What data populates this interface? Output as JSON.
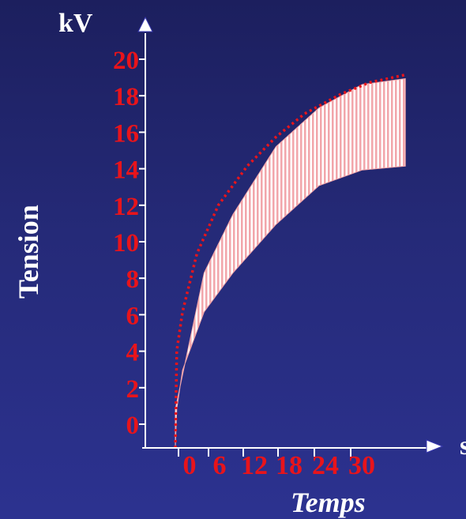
{
  "chart_data": {
    "type": "area",
    "ylabel": "Tension",
    "xlabel": "Temps",
    "y_unit": "kV",
    "x_unit": "s",
    "y_ticks": [
      "0",
      "2",
      "4",
      "6",
      "8",
      "10",
      "12",
      "14",
      "16",
      "18",
      "20"
    ],
    "x_ticks": [
      "0",
      "6",
      "12",
      "18",
      "24",
      "30"
    ],
    "ylim": [
      0,
      20
    ],
    "xlim": [
      0,
      30
    ],
    "series": [
      {
        "x": [
          0,
          0,
          4,
          8,
          14,
          20,
          26,
          32
        ],
        "values": [
          0,
          2,
          9,
          12,
          15.5,
          17.5,
          18.7,
          19
        ]
      },
      {
        "x": [
          0,
          0.2,
          1,
          4,
          8,
          14,
          20,
          26,
          32
        ],
        "values": [
          0,
          2,
          4,
          7,
          9,
          11.5,
          13.5,
          14.3,
          14.5
        ]
      },
      {
        "x": [
          0,
          0.2,
          1,
          3,
          6,
          10,
          14,
          18,
          23,
          27,
          32
        ],
        "values": [
          0,
          5,
          7,
          10,
          12.5,
          14.5,
          16,
          17.2,
          18.2,
          18.8,
          19.2
        ]
      }
    ],
    "colors": {
      "axis": "#ffffff",
      "tick_labels": "#e8141b",
      "fill": "#f2a6ab",
      "dotted": "#e8141b"
    }
  }
}
